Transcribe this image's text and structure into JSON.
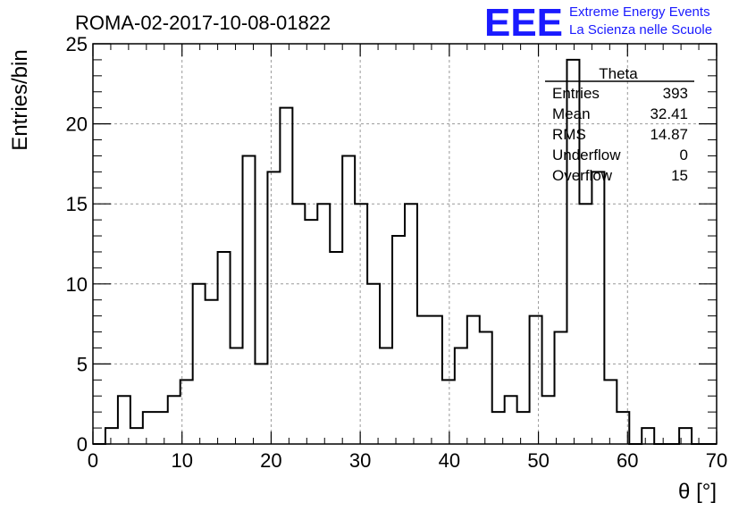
{
  "chart_data": {
    "type": "histogram",
    "title": "ROMA-02-2017-10-08-01822",
    "xlabel": "θ [°]",
    "ylabel": "Entries/bin",
    "xlim": [
      0,
      70
    ],
    "ylim": [
      0,
      25
    ],
    "x_ticks": [
      "0",
      "10",
      "20",
      "30",
      "40",
      "50",
      "60",
      "70"
    ],
    "y_ticks": [
      "0",
      "5",
      "10",
      "15",
      "20",
      "25"
    ],
    "grid": true,
    "bin_width": 1.4,
    "bin_start": 0,
    "values": [
      0,
      1,
      3,
      1,
      2,
      2,
      3,
      4,
      10,
      9,
      12,
      6,
      18,
      5,
      17,
      21,
      15,
      14,
      15,
      12,
      18,
      15,
      10,
      6,
      13,
      15,
      8,
      8,
      4,
      6,
      8,
      7,
      2,
      3,
      2,
      8,
      3,
      7,
      24,
      15,
      17,
      4,
      2,
      0,
      1,
      0,
      0,
      1,
      0,
      0
    ],
    "stats": {
      "name": "Theta",
      "rows": [
        {
          "label": "Entries",
          "value": "393"
        },
        {
          "label": "Mean",
          "value": "32.41"
        },
        {
          "label": "RMS",
          "value": "14.87"
        },
        {
          "label": "Underflow",
          "value": "0"
        },
        {
          "label": "Overflow",
          "value": "15"
        }
      ]
    }
  },
  "logo": {
    "mark": "EEE",
    "line1": "Extreme Energy Events",
    "line2": "La Scienza nelle Scuole",
    "color": "#1a1aff"
  }
}
